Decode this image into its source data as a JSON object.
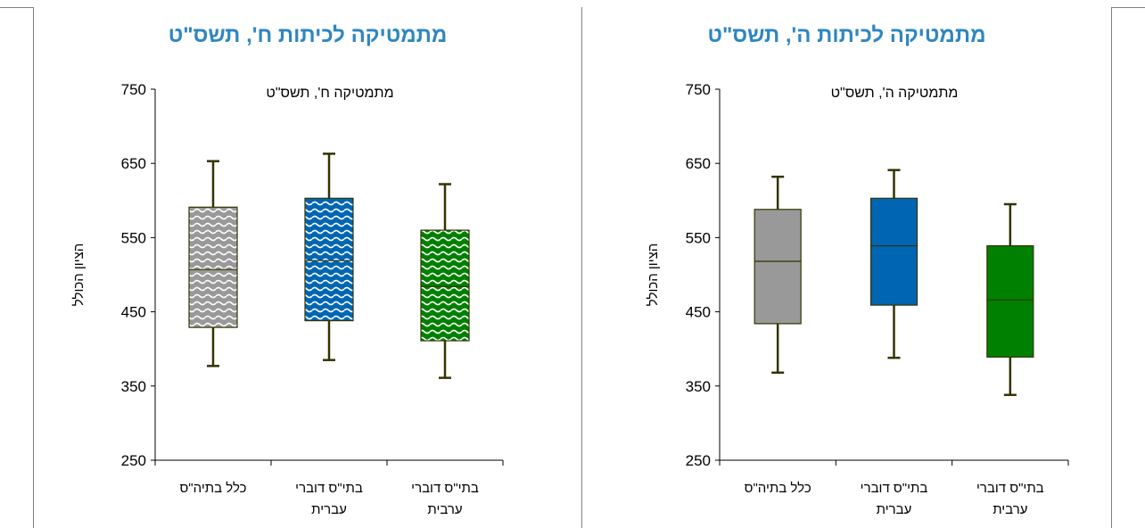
{
  "colors": {
    "title": "#2e86c1",
    "axis": "#000000",
    "whisker": "#333300",
    "gray": "#999999",
    "blue": "#0066b3",
    "green": "#008000"
  },
  "panels": {
    "left_title": "מתמטיקה לכיתות ח', תשס\"ט",
    "right_title": "מתמטיקה לכיתות ה', תשס\"ט"
  },
  "chart_data": [
    {
      "type": "box",
      "title": "מתמטיקה ח', תשס\"ט",
      "ylabel": "הציון הכולל",
      "ylim": [
        250,
        750
      ],
      "yticks": [
        250,
        350,
        450,
        550,
        650,
        750
      ],
      "fill_style": "patterned",
      "categories": [
        {
          "line1": "כלל בתיה\"ס",
          "line2": ""
        },
        {
          "line1": "בתי\"ס דוברי",
          "line2": "עברית"
        },
        {
          "line1": "בתי\"ס דוברי",
          "line2": "ערבית"
        }
      ],
      "boxes": [
        {
          "min": 377,
          "q1": 429,
          "median": 507,
          "q3": 591,
          "max": 653,
          "color": "gray"
        },
        {
          "min": 385,
          "q1": 438,
          "median": 519,
          "q3": 603,
          "max": 663,
          "color": "blue"
        },
        {
          "min": 361,
          "q1": 411,
          "median": 484,
          "q3": 560,
          "max": 622,
          "color": "green"
        }
      ]
    },
    {
      "type": "box",
      "title": "מתמטיקה ה', תשס\"ט",
      "ylabel": "הציון הכולל",
      "ylim": [
        250,
        750
      ],
      "yticks": [
        250,
        350,
        450,
        550,
        650,
        750
      ],
      "fill_style": "solid",
      "categories": [
        {
          "line1": "כלל בתיה\"ס",
          "line2": ""
        },
        {
          "line1": "בתי\"ס דוברי",
          "line2": "עברית"
        },
        {
          "line1": "בתי\"ס דוברי",
          "line2": "ערבית"
        }
      ],
      "boxes": [
        {
          "min": 368,
          "q1": 434,
          "median": 518,
          "q3": 588,
          "max": 632,
          "color": "gray"
        },
        {
          "min": 388,
          "q1": 459,
          "median": 539,
          "q3": 603,
          "max": 641,
          "color": "blue"
        },
        {
          "min": 338,
          "q1": 389,
          "median": 466,
          "q3": 539,
          "max": 595,
          "color": "green"
        }
      ]
    }
  ]
}
